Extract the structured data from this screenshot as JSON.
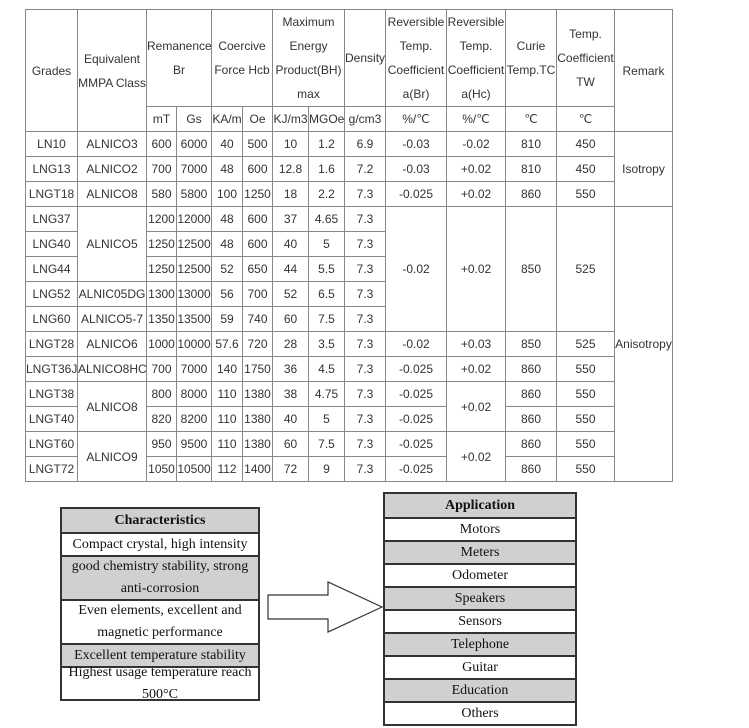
{
  "table": {
    "header": {
      "grades": "Grades",
      "equivalent": "Equivalent MMPA Class",
      "remanence": "Remanence Br",
      "coercive": "Coercive Force Hcb",
      "energy": "Maximum Energy Product(BH) max",
      "density": "Density",
      "rev_br": "Reversible Temp. Coefficient a(Br)",
      "rev_hc": "Reversible Temp. Coefficient a(Hc)",
      "curie": "Curie Temp.TC",
      "tw": "Temp. Coefficient TW",
      "remark": "Remark"
    },
    "units": [
      "mT",
      "Gs",
      "KA/m",
      "Oe",
      "KJ/m3",
      "MGOe",
      "g/cm3",
      "%/℃",
      "%/℃",
      "℃",
      "℃"
    ],
    "rows": [
      [
        "LN10",
        "ALNICO3",
        "600",
        "6000",
        "40",
        "500",
        "10",
        "1.2",
        "6.9",
        "-0.03",
        "-0.02",
        "810",
        "450",
        {
          "v": "Isotropy",
          "span": 3
        }
      ],
      [
        "LNG13",
        "ALNICO2",
        "700",
        "7000",
        "48",
        "600",
        "12.8",
        "1.6",
        "7.2",
        "-0.03",
        "+0.02",
        "810",
        "450"
      ],
      [
        "LNGT18",
        "ALNICO8",
        "580",
        "5800",
        "100",
        "1250",
        "18",
        "2.2",
        "7.3",
        "-0.025",
        "+0.02",
        "860",
        "550"
      ],
      [
        "LNG37",
        {
          "v": "ALNICO5",
          "span": 3
        },
        "1200",
        "12000",
        "48",
        "600",
        "37",
        "4.65",
        "7.3",
        {
          "v": "-0.02",
          "span": 5
        },
        {
          "v": "+0.02",
          "span": 5
        },
        {
          "v": "850",
          "span": 5
        },
        {
          "v": "525",
          "span": 5
        },
        {
          "v": "Anisotropy",
          "span": 11
        }
      ],
      [
        "LNG40",
        "1250",
        "12500",
        "48",
        "600",
        "40",
        "5",
        "7.3"
      ],
      [
        "LNG44",
        "1250",
        "12500",
        "52",
        "650",
        "44",
        "5.5",
        "7.3"
      ],
      [
        "LNG52",
        "ALNIC05DG",
        "1300",
        "13000",
        "56",
        "700",
        "52",
        "6.5",
        "7.3"
      ],
      [
        "LNG60",
        "ALNICO5-7",
        "1350",
        "13500",
        "59",
        "740",
        "60",
        "7.5",
        "7.3"
      ],
      [
        "LNGT28",
        "ALNICO6",
        "1000",
        "10000",
        "57.6",
        "720",
        "28",
        "3.5",
        "7.3",
        "-0.02",
        "+0.03",
        "850",
        "525"
      ],
      [
        "LNGT36J",
        "ALNICO8HC",
        "700",
        "7000",
        "140",
        "1750",
        "36",
        "4.5",
        "7.3",
        "-0.025",
        "+0.02",
        "860",
        "550"
      ],
      [
        "LNGT38",
        {
          "v": "ALNICO8",
          "span": 2
        },
        "800",
        "8000",
        "110",
        "1380",
        "38",
        "4.75",
        "7.3",
        "-0.025",
        {
          "v": "+0.02",
          "span": 2
        },
        "860",
        "550"
      ],
      [
        "LNGT40",
        "820",
        "8200",
        "110",
        "1380",
        "40",
        "5",
        "7.3",
        "-0.025",
        "860",
        "550"
      ],
      [
        "LNGT60",
        {
          "v": "ALNICO9",
          "span": 2
        },
        "950",
        "9500",
        "110",
        "1380",
        "60",
        "7.5",
        "7.3",
        "-0.025",
        {
          "v": "+0.02",
          "span": 2
        },
        "860",
        "550"
      ],
      [
        "LNGT72",
        "1050",
        "10500",
        "112",
        "1400",
        "72",
        "9",
        "7.3",
        "-0.025",
        "860",
        "550"
      ]
    ]
  },
  "characteristics": {
    "title": "Characteristics",
    "items": [
      "Compact crystal, high intensity",
      "good chemistry stability, strong anti-corrosion",
      "Even elements, excellent and magnetic performance",
      "Excellent temperature stability",
      "Highest usage temperature reach 500°C"
    ]
  },
  "application": {
    "title": "Application",
    "items": [
      "Motors",
      "Meters",
      "Odometer",
      "Speakers",
      "Sensors",
      "Telephone",
      "Guitar",
      "Education",
      "Others"
    ]
  },
  "colors": {
    "row_shade": "#d0d0d0",
    "border": "#333333"
  }
}
